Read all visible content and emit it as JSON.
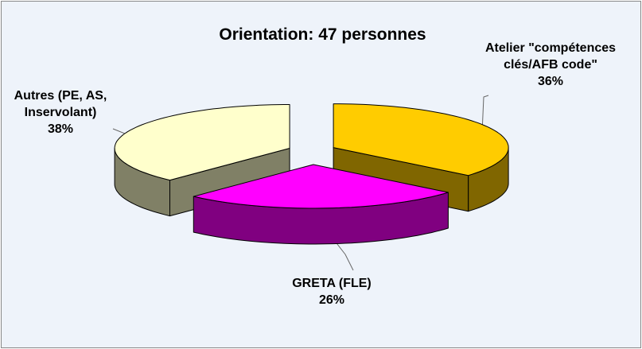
{
  "chart_data": {
    "type": "pie3d",
    "title": "Orientation: 47 personnes",
    "categories": [
      "Atelier \"compétences clés/AFB code\"",
      "GRETA (FLE)",
      "Autres (PE, AS, Inservolant)"
    ],
    "values": [
      36,
      26,
      38
    ],
    "value_labels": [
      "36%",
      "26%",
      "38%"
    ],
    "colors": [
      "#FFCC00",
      "#FF00FF",
      "#FFFFCC"
    ],
    "side_colors": [
      "#806600",
      "#800080",
      "#808066"
    ]
  }
}
